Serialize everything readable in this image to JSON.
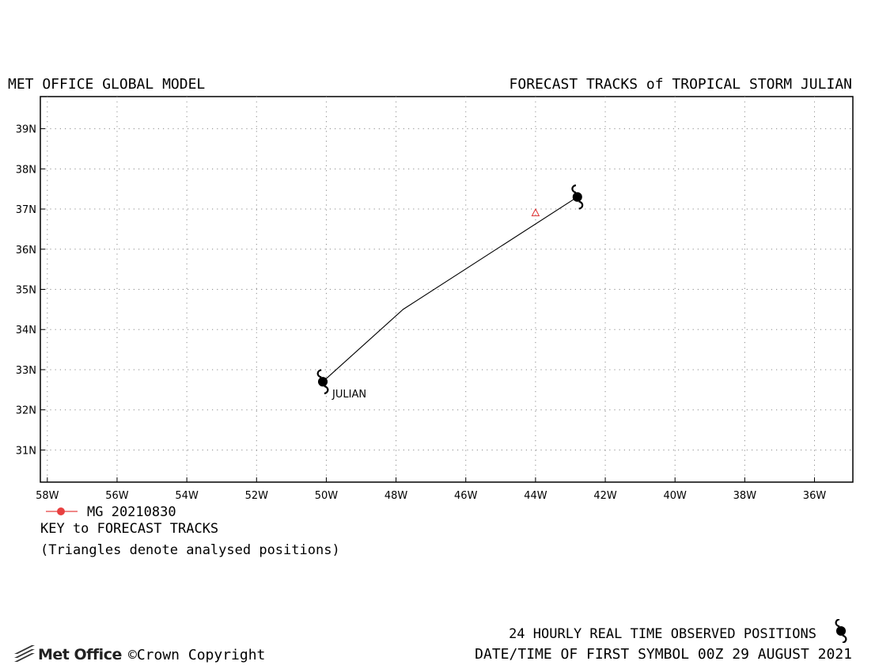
{
  "header": {
    "left_title": "MET OFFICE GLOBAL MODEL",
    "right_title": "FORECAST TRACKS of TROPICAL STORM JULIAN"
  },
  "map": {
    "lon_range": [
      -58.2,
      -34.9
    ],
    "lat_range": [
      30.2,
      39.8
    ],
    "lat_ticks": [
      {
        "value": 39,
        "label": "39N"
      },
      {
        "value": 38,
        "label": "38N"
      },
      {
        "value": 37,
        "label": "37N"
      },
      {
        "value": 36,
        "label": "36N"
      },
      {
        "value": 35,
        "label": "35N"
      },
      {
        "value": 34,
        "label": "34N"
      },
      {
        "value": 33,
        "label": "33N"
      },
      {
        "value": 32,
        "label": "32N"
      },
      {
        "value": 31,
        "label": "31N"
      }
    ],
    "lon_ticks": [
      {
        "value": -58,
        "label": "58W"
      },
      {
        "value": -56,
        "label": "56W"
      },
      {
        "value": -54,
        "label": "54W"
      },
      {
        "value": -52,
        "label": "52W"
      },
      {
        "value": -50,
        "label": "50W"
      },
      {
        "value": -48,
        "label": "48W"
      },
      {
        "value": -46,
        "label": "46W"
      },
      {
        "value": -44,
        "label": "44W"
      },
      {
        "value": -42,
        "label": "42W"
      },
      {
        "value": -40,
        "label": "40W"
      },
      {
        "value": -38,
        "label": "38W"
      },
      {
        "value": -36,
        "label": "36W"
      }
    ],
    "grid": "dotted",
    "observed_track": {
      "storm_name": "JULIAN",
      "points": [
        {
          "lon": -50.1,
          "lat": 32.7
        },
        {
          "lon": -47.8,
          "lat": 34.5
        },
        {
          "lon": -42.8,
          "lat": 37.3
        }
      ],
      "color": "#000000"
    },
    "analysed_positions": [
      {
        "lon": -44.0,
        "lat": 36.9,
        "color": "#e03030"
      }
    ]
  },
  "legend": {
    "entry_label": "MG 20210830",
    "entry_color": "#e84040",
    "key_title": "KEY to FORECAST TRACKS",
    "note": "(Triangles denote analysed positions)"
  },
  "footer": {
    "brand": "Met Office",
    "copyright": "©Crown Copyright",
    "observed_note": "24 HOURLY REAL TIME OBSERVED POSITIONS",
    "datetime_note": "DATE/TIME OF FIRST SYMBOL 00Z 29 AUGUST 2021"
  }
}
